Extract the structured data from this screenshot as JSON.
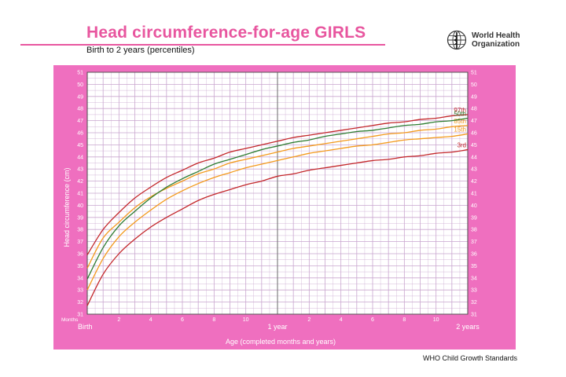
{
  "header": {
    "title": "Head circumference-for-age  GIRLS",
    "subtitle": "Birth to 2 years (percentiles)",
    "org_line1": "World Health",
    "org_line2": "Organization"
  },
  "footer": {
    "text": "WHO Child Growth Standards"
  },
  "colors": {
    "frame": "#ef6fbf",
    "plot_bg": "#ffffff",
    "grid": "#c9a6cf",
    "p97": "#c3272b",
    "p85": "#f39a1c",
    "p50": "#2e7d32",
    "p15": "#f39a1c",
    "p3": "#c3272b"
  },
  "chart_data": {
    "type": "line",
    "title": "Head circumference-for-age  GIRLS",
    "subtitle": "Birth to 2 years (percentiles)",
    "xlabel": "Age (completed months and years)",
    "ylabel": "Head circumference (cm)",
    "xlim": [
      0,
      24
    ],
    "ylim": [
      31,
      51
    ],
    "grid": true,
    "x_ticks": [
      {
        "month": 2,
        "label": "2"
      },
      {
        "month": 4,
        "label": "4"
      },
      {
        "month": 6,
        "label": "6"
      },
      {
        "month": 8,
        "label": "8"
      },
      {
        "month": 10,
        "label": "10"
      },
      {
        "month": 14,
        "label": "2"
      },
      {
        "month": 16,
        "label": "4"
      },
      {
        "month": 18,
        "label": "6"
      },
      {
        "month": 20,
        "label": "8"
      },
      {
        "month": 22,
        "label": "10"
      }
    ],
    "x_major_labels": [
      {
        "month": 0,
        "label": "Birth"
      },
      {
        "month": 12,
        "label": "1 year"
      },
      {
        "month": 24,
        "label": "2 years"
      }
    ],
    "x_months_label": "Months",
    "y_ticks": [
      31,
      32,
      33,
      34,
      35,
      36,
      37,
      38,
      39,
      40,
      41,
      42,
      43,
      44,
      45,
      46,
      47,
      48,
      49,
      50,
      51
    ],
    "x": [
      0,
      1,
      2,
      3,
      4,
      5,
      6,
      7,
      8,
      9,
      10,
      11,
      12,
      13,
      14,
      15,
      16,
      17,
      18,
      19,
      20,
      21,
      22,
      23,
      24
    ],
    "series": [
      {
        "name": "97th",
        "color_key": "p97",
        "values": [
          35.9,
          38.0,
          39.4,
          40.6,
          41.5,
          42.3,
          42.9,
          43.5,
          43.9,
          44.4,
          44.7,
          45.0,
          45.3,
          45.6,
          45.8,
          46.0,
          46.2,
          46.4,
          46.6,
          46.8,
          46.9,
          47.1,
          47.2,
          47.4,
          47.5
        ]
      },
      {
        "name": "85th",
        "color_key": "p85",
        "values": [
          34.8,
          37.3,
          38.6,
          39.8,
          40.7,
          41.4,
          42.0,
          42.6,
          43.0,
          43.5,
          43.8,
          44.1,
          44.4,
          44.7,
          44.9,
          45.1,
          45.3,
          45.5,
          45.7,
          45.9,
          46.0,
          46.2,
          46.3,
          46.5,
          46.6
        ]
      },
      {
        "name": "50th",
        "color_key": "p50",
        "values": [
          33.9,
          36.5,
          38.3,
          39.5,
          40.6,
          41.5,
          42.2,
          42.8,
          43.4,
          43.8,
          44.2,
          44.6,
          44.9,
          45.2,
          45.4,
          45.7,
          45.9,
          46.1,
          46.2,
          46.4,
          46.6,
          46.7,
          46.9,
          47.0,
          47.2
        ]
      },
      {
        "name": "15th",
        "color_key": "p15",
        "values": [
          33.0,
          35.6,
          37.4,
          38.6,
          39.6,
          40.5,
          41.2,
          41.8,
          42.3,
          42.7,
          43.1,
          43.4,
          43.7,
          44.0,
          44.3,
          44.5,
          44.7,
          44.9,
          45.0,
          45.2,
          45.4,
          45.5,
          45.6,
          45.7,
          45.9
        ]
      },
      {
        "name": "3rd",
        "color_key": "p3",
        "values": [
          31.7,
          34.3,
          36.0,
          37.2,
          38.2,
          39.0,
          39.7,
          40.4,
          40.9,
          41.3,
          41.7,
          42.0,
          42.4,
          42.6,
          42.9,
          43.1,
          43.3,
          43.5,
          43.7,
          43.8,
          44.0,
          44.1,
          44.3,
          44.4,
          44.6
        ]
      }
    ]
  }
}
